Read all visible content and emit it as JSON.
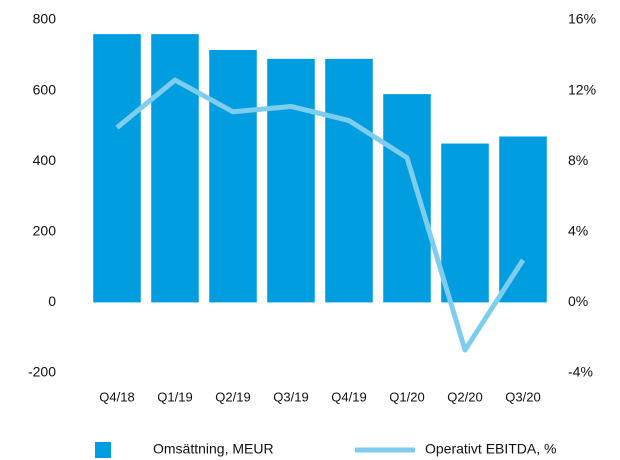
{
  "chart_data": {
    "type": "bar",
    "categories": [
      "Q4/18",
      "Q1/19",
      "Q2/19",
      "Q3/19",
      "Q4/19",
      "Q1/20",
      "Q2/20",
      "Q3/20"
    ],
    "series": [
      {
        "name": "Omsättning, MEUR",
        "type": "bar",
        "color": "#009ee0",
        "values": [
          760,
          760,
          715,
          690,
          690,
          590,
          450,
          470
        ]
      },
      {
        "name": "Operativt EBITDA, %",
        "type": "line",
        "axis": "y2",
        "color": "#7fcdee",
        "values": [
          9.9,
          12.6,
          10.8,
          11.1,
          10.3,
          8.2,
          -2.7,
          2.4
        ]
      }
    ],
    "ylim": [
      -200,
      800
    ],
    "yticks": [
      -200,
      0,
      200,
      400,
      600,
      800
    ],
    "y2lim": [
      -4,
      16
    ],
    "y2ticks": [
      {
        "value": -4,
        "label": "-4%"
      },
      {
        "value": 0,
        "label": "0%"
      },
      {
        "value": 4,
        "label": "4%"
      },
      {
        "value": 8,
        "label": "8%"
      },
      {
        "value": 12,
        "label": "12%"
      },
      {
        "value": 16,
        "label": "16%"
      }
    ],
    "grid": false,
    "legend": "bottom"
  }
}
